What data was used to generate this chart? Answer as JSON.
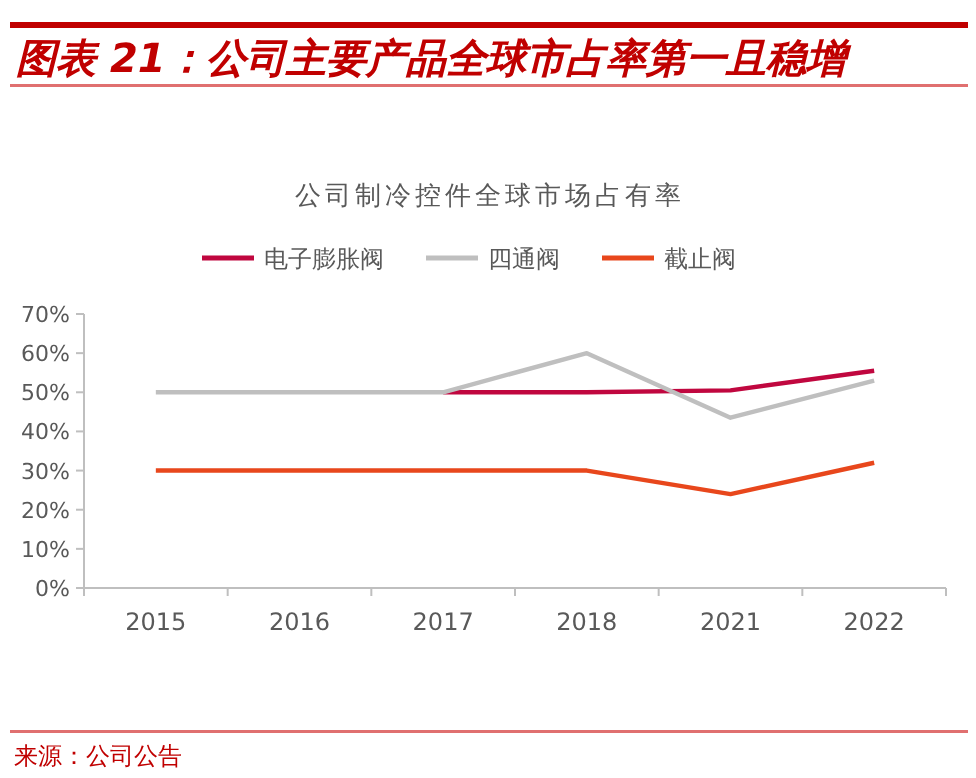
{
  "chart_data": {
    "type": "line",
    "title": "图表 21：公司主要产品全球市占率第一且稳增",
    "subtitle": "公司制冷控件全球市场占有率",
    "categories": [
      "2015",
      "2016",
      "2017",
      "2018",
      "2021",
      "2022"
    ],
    "series": [
      {
        "name": "电子膨胀阀",
        "color": "#c0073f",
        "values": [
          null,
          null,
          50,
          50,
          50.5,
          55.5
        ]
      },
      {
        "name": "四通阀",
        "color": "#bfbfbf",
        "values": [
          50,
          50,
          50,
          60,
          43.5,
          53
        ]
      },
      {
        "name": "截止阀",
        "color": "#e8471c",
        "values": [
          30,
          30,
          30,
          30,
          24,
          32
        ]
      }
    ],
    "ylim": [
      0,
      70
    ],
    "yticks": [
      {
        "value": 0,
        "label": "0%"
      },
      {
        "value": 10,
        "label": "10%"
      },
      {
        "value": 20,
        "label": "20%"
      },
      {
        "value": 30,
        "label": "30%"
      },
      {
        "value": 40,
        "label": "40%"
      },
      {
        "value": 50,
        "label": "50%"
      },
      {
        "value": 60,
        "label": "60%"
      },
      {
        "value": 70,
        "label": "70%"
      }
    ],
    "legend": "top",
    "marker": "none",
    "line_style": "solid",
    "annotations": [
      "来源：公司公告"
    ]
  }
}
